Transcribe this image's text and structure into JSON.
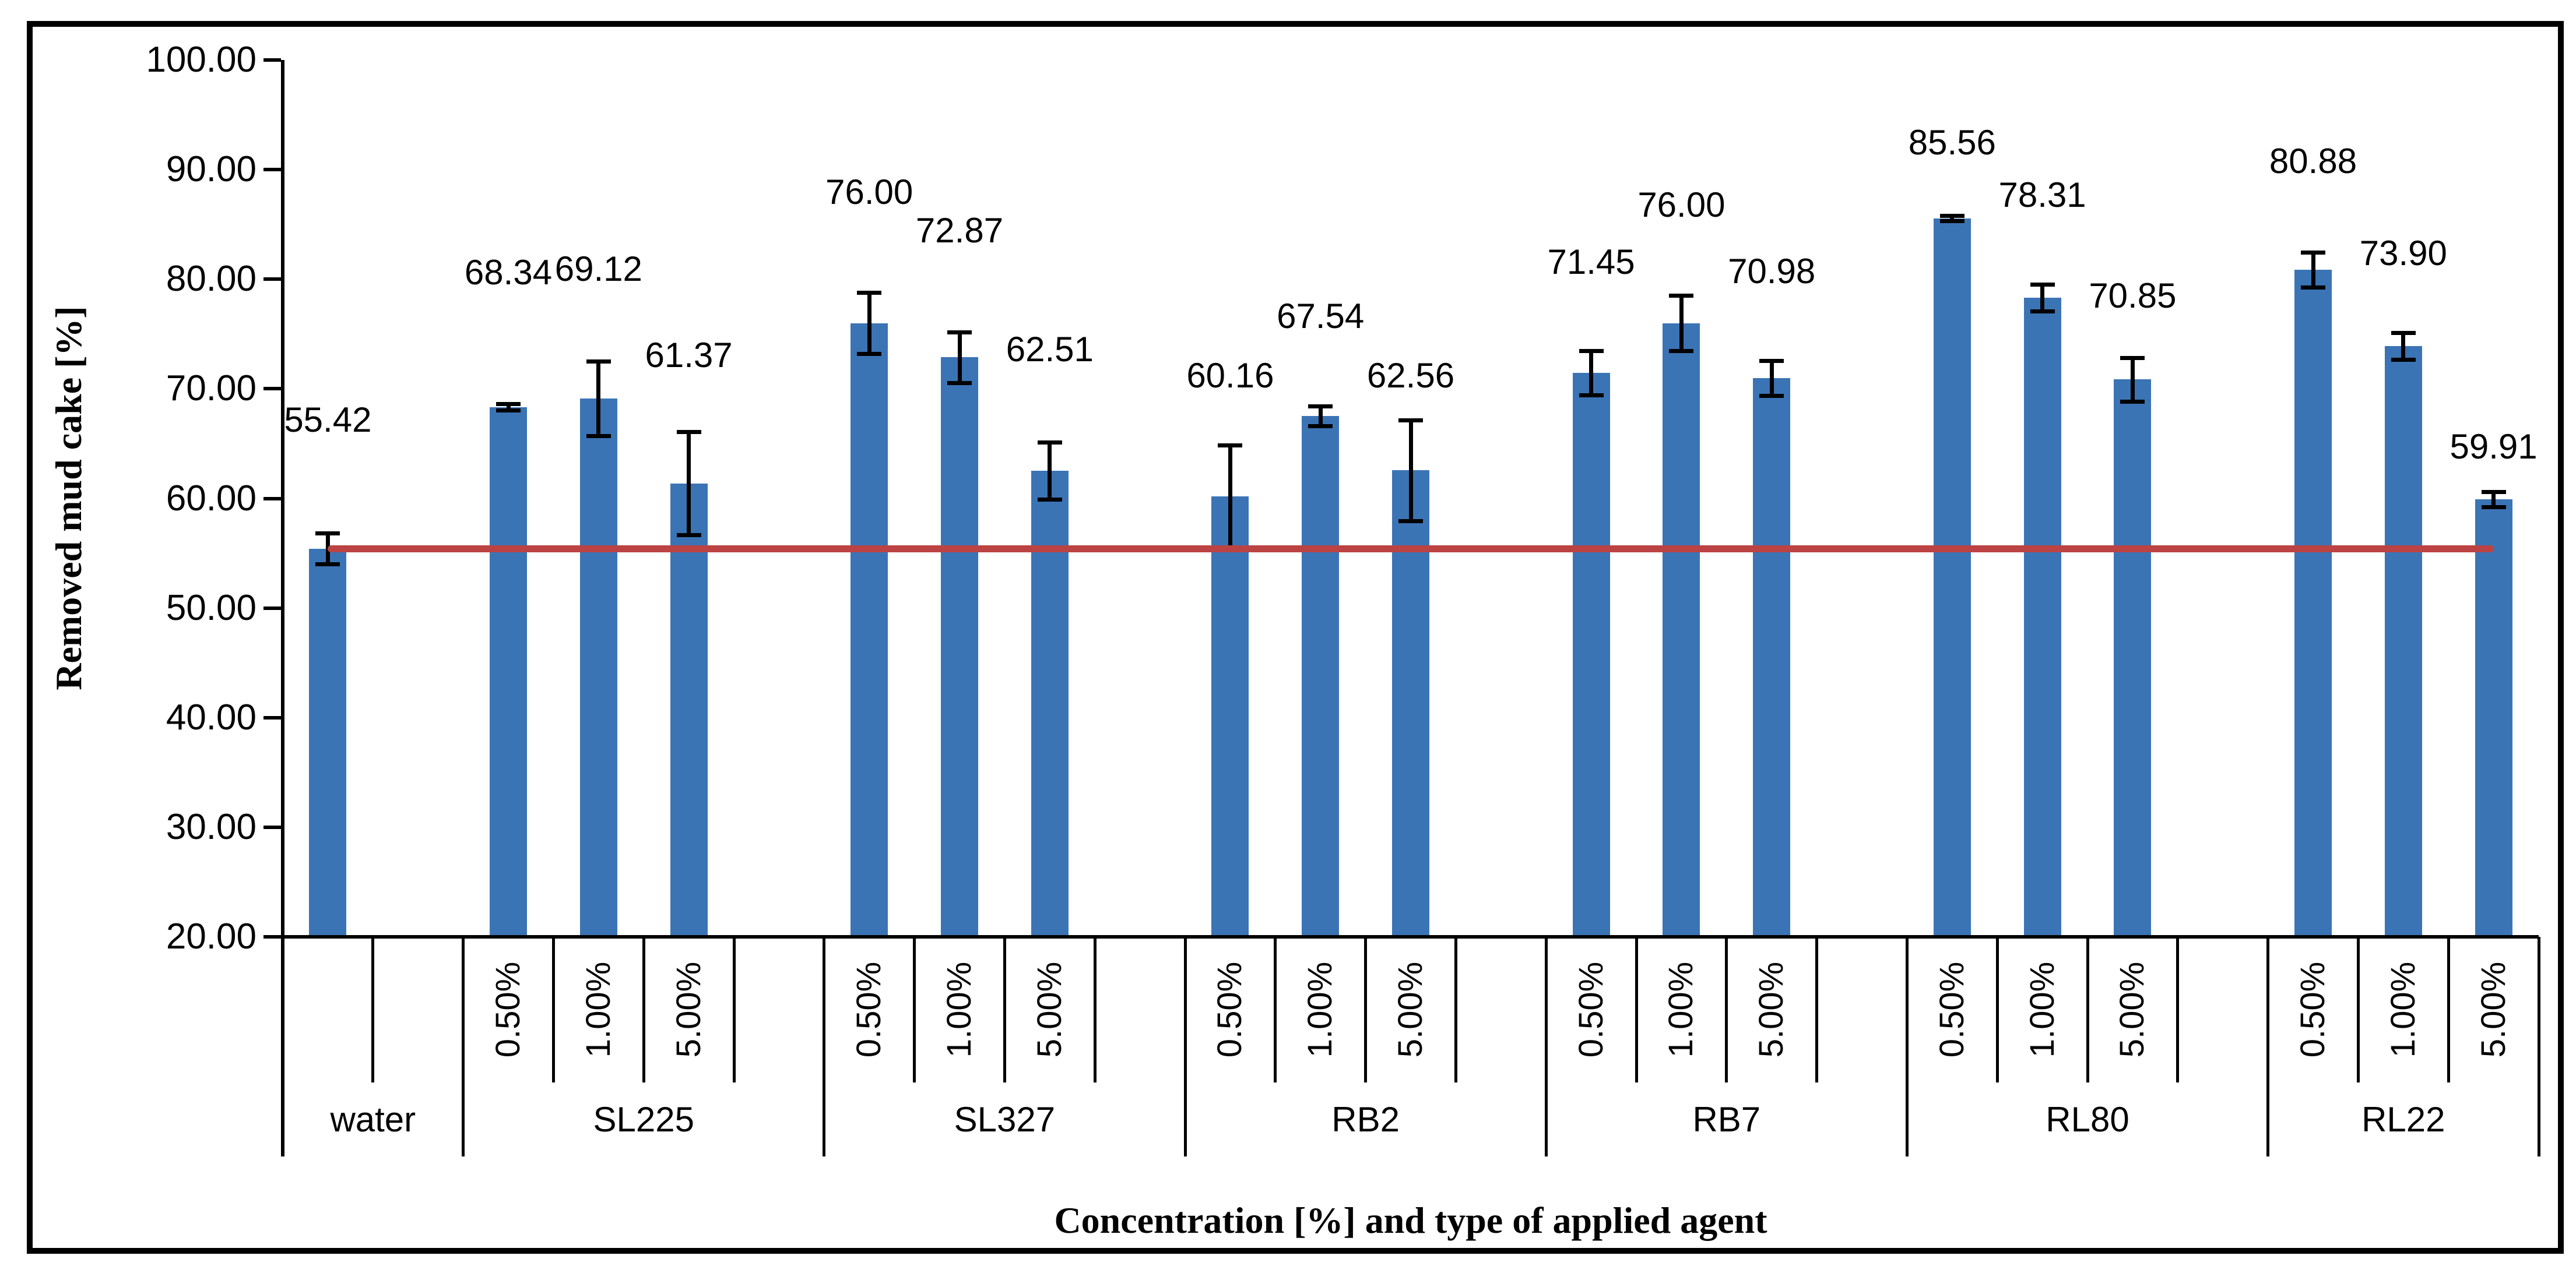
{
  "chart_data": {
    "type": "bar",
    "title": "",
    "xlabel": "Concentration [%] and type of applied agent",
    "ylabel": "Removed mud cake [%]",
    "ylim": [
      20,
      100
    ],
    "ytick_step": 10,
    "y_tick_labels": [
      "100.00",
      "90.00",
      "80.00",
      "70.00",
      "60.00",
      "50.00",
      "40.00",
      "30.00",
      "20.00"
    ],
    "grid": false,
    "legend": "none",
    "bar_color": "#3B74B5",
    "error_bar_color": "#000000",
    "axis_color": "#000000",
    "reference_line": {
      "value": 55.42,
      "color": "#BC4343"
    },
    "groups": [
      {
        "label": "water",
        "spacer_after": true,
        "bars": [
          {
            "conc": "",
            "label": "55.42",
            "value": 55.42,
            "err": 1.4,
            "label_y": 721
          }
        ]
      },
      {
        "label": "SL225",
        "spacer_after": true,
        "bars": [
          {
            "conc": "0.50%",
            "label": "68.34",
            "value": 68.34,
            "err": 0.3,
            "label_y": 468
          },
          {
            "conc": "1.00%",
            "label": "69.12",
            "value": 69.12,
            "err": 3.4,
            "label_y": 462
          },
          {
            "conc": "5.00%",
            "label": "61.37",
            "value": 61.37,
            "err": 4.7,
            "label_y": 610
          }
        ]
      },
      {
        "label": "SL327",
        "spacer_after": true,
        "bars": [
          {
            "conc": "0.50%",
            "label": "76.00",
            "value": 76.0,
            "err": 2.8,
            "label_y": 330
          },
          {
            "conc": "1.00%",
            "label": "72.87",
            "value": 72.87,
            "err": 2.3,
            "label_y": 396
          },
          {
            "conc": "5.00%",
            "label": "62.51",
            "value": 62.51,
            "err": 2.6,
            "label_y": 600
          }
        ]
      },
      {
        "label": "RB2",
        "spacer_after": true,
        "bars": [
          {
            "conc": "0.50%",
            "label": "60.16",
            "value": 60.16,
            "err": 4.7,
            "label_y": 645
          },
          {
            "conc": "1.00%",
            "label": "67.54",
            "value": 67.54,
            "err": 0.9,
            "label_y": 543
          },
          {
            "conc": "5.00%",
            "label": "62.56",
            "value": 62.56,
            "err": 4.6,
            "label_y": 645
          }
        ]
      },
      {
        "label": "RB7",
        "spacer_after": true,
        "bars": [
          {
            "conc": "0.50%",
            "label": "71.45",
            "value": 71.45,
            "err": 2.0,
            "label_y": 450
          },
          {
            "conc": "1.00%",
            "label": "76.00",
            "value": 76.0,
            "err": 2.5,
            "label_y": 352
          },
          {
            "conc": "5.00%",
            "label": "70.98",
            "value": 70.98,
            "err": 1.6,
            "label_y": 466
          }
        ]
      },
      {
        "label": "RL80",
        "spacer_after": true,
        "bars": [
          {
            "conc": "0.50%",
            "label": "85.56",
            "value": 85.56,
            "err": 0.25,
            "label_y": 245
          },
          {
            "conc": "1.00%",
            "label": "78.31",
            "value": 78.31,
            "err": 1.2,
            "label_y": 335
          },
          {
            "conc": "5.00%",
            "label": "70.85",
            "value": 70.85,
            "err": 2.0,
            "label_y": 508
          }
        ]
      },
      {
        "label": "RL22",
        "spacer_after": false,
        "bars": [
          {
            "conc": "0.50%",
            "label": "80.88",
            "value": 80.88,
            "err": 1.6,
            "label_y": 277
          },
          {
            "conc": "1.00%",
            "label": "73.90",
            "value": 73.9,
            "err": 1.2,
            "label_y": 435
          },
          {
            "conc": "5.00%",
            "label": "59.91",
            "value": 59.91,
            "err": 0.7,
            "label_y": 767
          }
        ]
      }
    ]
  }
}
